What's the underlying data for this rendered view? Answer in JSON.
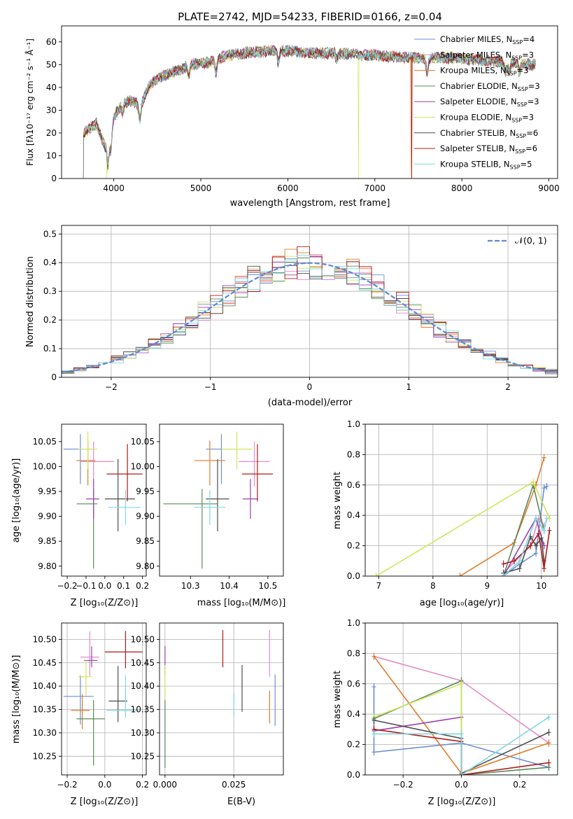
{
  "colors": [
    "#6b8fd6",
    "#e58ac8",
    "#e07b2a",
    "#5b8a5b",
    "#9b3fb0",
    "#cfe65a",
    "#4d4d4d",
    "#b01a1a",
    "#7fd8dc"
  ],
  "chart_data": [
    {
      "id": "spectrum",
      "type": "line",
      "title": "PLATE=2742, MJD=54233, FIBERID=0166, z=0.04",
      "xlabel": "wavelength [Angstrom, rest frame]",
      "ylabel": "Flux [fλ10⁻¹⁷ erg cm⁻² s⁻¹ Å⁻¹]",
      "xlim": [
        3400,
        9100
      ],
      "ylim": [
        0,
        67
      ],
      "xticks": [
        4000,
        5000,
        6000,
        7000,
        8000,
        9000
      ],
      "yticks": [
        0,
        10,
        20,
        30,
        40,
        50,
        60
      ],
      "legend_position": "top-right",
      "legend": [
        "Chabrier MILES, N_SSP=4",
        "Salpeter MILES, N_SSP=3",
        "Kroupa MILES, N_SSP=3",
        "Chabrier ELODIE, N_SSP=3",
        "Salpeter ELODIE, N_SSP=3",
        "Kroupa ELODIE, N_SSP=3",
        "Chabrier STELIB, N_SSP=6",
        "Salpeter STELIB, N_SSP=6",
        "Kroupa STELIB, N_SSP=5"
      ],
      "continuum": [
        [
          3650,
          20
        ],
        [
          3800,
          24
        ],
        [
          3900,
          14
        ],
        [
          4000,
          27
        ],
        [
          4100,
          33
        ],
        [
          4200,
          34
        ],
        [
          4300,
          32
        ],
        [
          4400,
          40
        ],
        [
          4500,
          44
        ],
        [
          4700,
          47
        ],
        [
          4900,
          50
        ],
        [
          5100,
          51
        ],
        [
          5300,
          54
        ],
        [
          5500,
          55
        ],
        [
          5800,
          56
        ],
        [
          6000,
          56
        ],
        [
          6300,
          55
        ],
        [
          6600,
          55
        ],
        [
          7000,
          54
        ],
        [
          7400,
          53
        ],
        [
          7800,
          53
        ],
        [
          8200,
          52
        ],
        [
          8500,
          51
        ],
        [
          8800,
          50
        ]
      ],
      "drops": [
        {
          "series": 5,
          "x": 3920
        },
        {
          "series": 5,
          "x": 6810
        },
        {
          "series": 2,
          "x": 7420
        },
        {
          "series": 7,
          "x": 7425
        },
        {
          "series": 6,
          "x": 3650
        }
      ]
    },
    {
      "id": "residuals",
      "type": "step",
      "xlabel": "(data-model)/error",
      "ylabel": "Normed distribution",
      "xlim": [
        -2.5,
        2.5
      ],
      "ylim": [
        0,
        0.53
      ],
      "xticks": [
        -2,
        -1,
        0,
        1,
        2
      ],
      "yticks": [
        0,
        0.1,
        0.2,
        0.3,
        0.4,
        0.5
      ],
      "legend_position": "top-right",
      "legend": [
        "𝒩(0, 1)"
      ]
    },
    {
      "id": "age-vs-z",
      "type": "errorbar",
      "xlabel": "Z [log₁₀(Z/Z⊙)]",
      "ylabel": "age [log₁₀(age/yr)]",
      "xlim": [
        -0.23,
        0.22
      ],
      "ylim": [
        9.78,
        10.085
      ],
      "xticks": [
        -0.2,
        -0.1,
        0,
        0.1,
        0.2
      ],
      "xticklabels": [
        "−0.2",
        "−0.1",
        "0.0",
        "0.1",
        "0.2"
      ],
      "yticks": [
        9.8,
        9.85,
        9.9,
        9.95,
        10,
        10.05
      ],
      "yticklabels": [
        "9.80",
        "9.85",
        "9.90",
        "9.95",
        "10.00",
        "10.05"
      ],
      "points": [
        {
          "s": 0,
          "x": -0.13,
          "y": 10.035,
          "xl": 0.09,
          "xh": 0.07,
          "yl": 0.07,
          "yh": 0.03
        },
        {
          "s": 1,
          "x": -0.06,
          "y": 10.01,
          "xl": 0.07,
          "xh": 0.11,
          "yl": 0.05,
          "yh": 0.04
        },
        {
          "s": 2,
          "x": -0.09,
          "y": 10.012,
          "xl": 0.06,
          "xh": 0.04,
          "yl": 0.05,
          "yh": 0.04
        },
        {
          "s": 3,
          "x": -0.06,
          "y": 9.925,
          "xl": 0.09,
          "xh": 0.02,
          "yl": 0.13,
          "yh": 0.03
        },
        {
          "s": 4,
          "x": -0.06,
          "y": 9.935,
          "xl": 0.04,
          "xh": 0.03,
          "yl": 0.04,
          "yh": 0.04
        },
        {
          "s": 5,
          "x": -0.09,
          "y": 10.035,
          "xl": 0.05,
          "xh": 0.05,
          "yl": 0.04,
          "yh": 0.035
        },
        {
          "s": 6,
          "x": 0.07,
          "y": 9.935,
          "xl": 0.07,
          "xh": 0.09,
          "yl": 0.065,
          "yh": 0.08
        },
        {
          "s": 7,
          "x": 0.12,
          "y": 9.985,
          "xl": 0.11,
          "xh": 0.08,
          "yl": 0.055,
          "yh": 0.06
        },
        {
          "s": 8,
          "x": 0.11,
          "y": 9.918,
          "xl": 0.09,
          "xh": 0.08,
          "yl": 0.035,
          "yh": 0.035
        }
      ]
    },
    {
      "id": "age-vs-mass",
      "type": "errorbar",
      "xlabel": "mass [log₁₀(M/M⊙)]",
      "ylabel": "",
      "xlim": [
        10.22,
        10.54
      ],
      "ylim": [
        9.78,
        10.085
      ],
      "xticks": [
        10.3,
        10.4,
        10.5
      ],
      "xticklabels": [
        "10.3",
        "10.4",
        "10.5"
      ],
      "yticks": [
        9.8,
        9.85,
        9.9,
        9.95,
        10,
        10.05
      ],
      "yticklabels": [
        "9.80",
        "9.85",
        "9.90",
        "9.95",
        "10.00",
        "10.05"
      ],
      "points": [
        {
          "s": 0,
          "x": 10.38,
          "y": 10.035,
          "xl": 0.04,
          "xh": 0.04,
          "yl": 0.07,
          "yh": 0.03
        },
        {
          "s": 1,
          "x": 10.465,
          "y": 10.01,
          "xl": 0.04,
          "xh": 0.04,
          "yl": 0.05,
          "yh": 0.04
        },
        {
          "s": 2,
          "x": 10.35,
          "y": 10.012,
          "xl": 0.04,
          "xh": 0.04,
          "yl": 0.05,
          "yh": 0.04
        },
        {
          "s": 3,
          "x": 10.33,
          "y": 9.925,
          "xl": 0.1,
          "xh": 0.04,
          "yl": 0.13,
          "yh": 0.03
        },
        {
          "s": 4,
          "x": 10.455,
          "y": 9.935,
          "xl": 0.02,
          "xh": 0.02,
          "yl": 0.04,
          "yh": 0.04
        },
        {
          "s": 5,
          "x": 10.42,
          "y": 10.035,
          "xl": 0.04,
          "xh": 0.04,
          "yl": 0.04,
          "yh": 0.035
        },
        {
          "s": 6,
          "x": 10.37,
          "y": 9.935,
          "xl": 0.03,
          "xh": 0.03,
          "yl": 0.065,
          "yh": 0.08
        },
        {
          "s": 7,
          "x": 10.473,
          "y": 9.985,
          "xl": 0.04,
          "xh": 0.04,
          "yl": 0.055,
          "yh": 0.06
        },
        {
          "s": 8,
          "x": 10.35,
          "y": 9.918,
          "xl": 0.04,
          "xh": 0.04,
          "yl": 0.035,
          "yh": 0.035
        }
      ]
    },
    {
      "id": "weight-vs-age",
      "type": "line",
      "xlabel": "age [log₁₀(age/yr)]",
      "ylabel": "mass weight",
      "xlim": [
        6.75,
        10.3
      ],
      "ylim": [
        0,
        1
      ],
      "xticks": [
        7,
        8,
        9,
        10
      ],
      "xticklabels": [
        "7",
        "8",
        "9",
        "10"
      ],
      "yticks": [
        0,
        0.2,
        0.4,
        0.6,
        0.8,
        1
      ],
      "yticklabels": [
        "0.0",
        "0.2",
        "0.4",
        "0.6",
        "0.8",
        "1.0"
      ],
      "series": [
        {
          "s": 0,
          "points": [
            [
              9.3,
              0.0
            ],
            [
              9.6,
              0.08
            ],
            [
              9.9,
              0.15
            ],
            [
              10.05,
              0.58
            ],
            [
              10.1,
              0.59
            ]
          ]
        },
        {
          "s": 1,
          "points": [
            [
              9.3,
              0.02
            ],
            [
              9.8,
              0.2
            ],
            [
              9.95,
              0.38
            ],
            [
              10.05,
              0.33
            ]
          ]
        },
        {
          "s": 2,
          "points": [
            [
              8.5,
              0.0
            ],
            [
              9.5,
              0.22
            ],
            [
              9.9,
              0.6
            ],
            [
              10.05,
              0.78
            ]
          ]
        },
        {
          "s": 3,
          "points": [
            [
              9.3,
              0.0
            ],
            [
              9.85,
              0.6
            ],
            [
              10.05,
              0.3
            ]
          ]
        },
        {
          "s": 4,
          "points": [
            [
              9.3,
              0.0
            ],
            [
              9.9,
              0.38
            ],
            [
              10.05,
              0.2
            ]
          ]
        },
        {
          "s": 5,
          "points": [
            [
              6.95,
              0.0
            ],
            [
              9.85,
              0.62
            ],
            [
              10.15,
              0.38
            ]
          ]
        },
        {
          "s": 6,
          "points": [
            [
              9.3,
              0.02
            ],
            [
              9.6,
              0.05
            ],
            [
              9.8,
              0.26
            ],
            [
              9.9,
              0.2
            ],
            [
              10.0,
              0.25
            ],
            [
              10.05,
              0.1
            ]
          ]
        },
        {
          "s": 7,
          "points": [
            [
              9.3,
              0.08
            ],
            [
              9.5,
              0.1
            ],
            [
              9.8,
              0.2
            ],
            [
              9.95,
              0.28
            ],
            [
              10.05,
              0.05
            ],
            [
              10.15,
              0.3
            ]
          ]
        },
        {
          "s": 8,
          "points": [
            [
              9.3,
              0.0
            ],
            [
              9.6,
              0.1
            ],
            [
              9.9,
              0.38
            ],
            [
              10.05,
              0.3
            ],
            [
              10.1,
              0.38
            ]
          ]
        }
      ]
    },
    {
      "id": "mass-vs-z",
      "type": "errorbar",
      "xlabel": "Z [log₁₀(Z/Z⊙)]",
      "ylabel": "mass [log₁₀(M/M⊙)]",
      "xlim": [
        -0.23,
        0.22
      ],
      "ylim": [
        10.21,
        10.535
      ],
      "xticks": [
        -0.2,
        0,
        0.2
      ],
      "xticklabels": [
        "−0.2",
        "0.0",
        "0.2"
      ],
      "yticks": [
        10.25,
        10.3,
        10.35,
        10.4,
        10.45,
        10.5
      ],
      "yticklabels": [
        "10.25",
        "10.30",
        "10.35",
        "10.40",
        "10.45",
        "10.50"
      ],
      "points": [
        {
          "s": 0,
          "x": -0.13,
          "y": 10.378,
          "xl": 0.09,
          "xh": 0.07,
          "yl": 0.06,
          "yh": 0.045
        },
        {
          "s": 1,
          "x": -0.08,
          "y": 10.462,
          "xl": 0.05,
          "xh": 0.05,
          "yl": 0.04,
          "yh": 0.055
        },
        {
          "s": 2,
          "x": -0.12,
          "y": 10.348,
          "xl": 0.06,
          "xh": 0.04,
          "yl": 0.04,
          "yh": 0.035
        },
        {
          "s": 3,
          "x": -0.06,
          "y": 10.33,
          "xl": 0.09,
          "xh": 0.06,
          "yl": 0.1,
          "yh": 0.04
        },
        {
          "s": 4,
          "x": -0.07,
          "y": 10.455,
          "xl": 0.04,
          "xh": 0.03,
          "yl": 0.015,
          "yh": 0.03
        },
        {
          "s": 5,
          "x": -0.1,
          "y": 10.42,
          "xl": 0.04,
          "xh": 0.03,
          "yl": 0.04,
          "yh": 0.035
        },
        {
          "s": 6,
          "x": 0.07,
          "y": 10.368,
          "xl": 0.05,
          "xh": 0.05,
          "yl": 0.045,
          "yh": 0.075
        },
        {
          "s": 7,
          "x": 0.11,
          "y": 10.473,
          "xl": 0.11,
          "xh": 0.09,
          "yl": 0.035,
          "yh": 0.045
        },
        {
          "s": 8,
          "x": 0.11,
          "y": 10.348,
          "xl": 0.1,
          "xh": 0.07,
          "yl": 0.015,
          "yh": 0.075
        }
      ]
    },
    {
      "id": "mass-vs-ebv",
      "type": "errorbar",
      "xlabel": "E(B-V)",
      "ylabel": "",
      "xlim": [
        -0.002,
        0.043
      ],
      "ylim": [
        10.21,
        10.535
      ],
      "xticks": [
        0,
        0.025
      ],
      "xticklabels": [
        "0.000",
        "0.025"
      ],
      "yticks": [
        10.25,
        10.3,
        10.35,
        10.4,
        10.45,
        10.5
      ],
      "yticklabels": [
        "10.25",
        "10.30",
        "10.35",
        "10.40",
        "10.45",
        "10.50"
      ],
      "points": [
        {
          "s": 0,
          "x": 0.04,
          "y": 10.37,
          "xl": 0,
          "xh": 0,
          "yl": 0.055,
          "yh": 0.055
        },
        {
          "s": 1,
          "x": 0.038,
          "y": 10.47,
          "xl": 0,
          "xh": 0,
          "yl": 0.05,
          "yh": 0.05
        },
        {
          "s": 2,
          "x": 0.038,
          "y": 10.355,
          "xl": 0,
          "xh": 0,
          "yl": 0.035,
          "yh": 0.035
        },
        {
          "s": 3,
          "x": 0.0,
          "y": 10.3,
          "xl": 0,
          "xh": 0,
          "yl": 0.075,
          "yh": 0.07
        },
        {
          "s": 4,
          "x": 0.0,
          "y": 10.455,
          "xl": 0,
          "xh": 0,
          "yl": 0.03,
          "yh": 0.03
        },
        {
          "s": 5,
          "x": 0.0,
          "y": 10.41,
          "xl": 0,
          "xh": 0,
          "yl": 0.035,
          "yh": 0.035
        },
        {
          "s": 6,
          "x": 0.028,
          "y": 10.395,
          "xl": 0,
          "xh": 0,
          "yl": 0.05,
          "yh": 0.05
        },
        {
          "s": 7,
          "x": 0.021,
          "y": 10.48,
          "xl": 0,
          "xh": 0,
          "yl": 0.04,
          "yh": 0.04
        },
        {
          "s": 8,
          "x": 0.025,
          "y": 10.36,
          "xl": 0,
          "xh": 0,
          "yl": 0.025,
          "yh": 0.025
        }
      ]
    },
    {
      "id": "weight-vs-z",
      "type": "line",
      "xlabel": "Z [log₁₀(Z/Z⊙)]",
      "ylabel": "mass weight",
      "xlim": [
        -0.33,
        0.33
      ],
      "ylim": [
        0,
        1
      ],
      "xticks": [
        -0.2,
        0,
        0.2
      ],
      "xticklabels": [
        "−0.2",
        "0.0",
        "0.2"
      ],
      "yticks": [
        0,
        0.2,
        0.4,
        0.6,
        0.8,
        1
      ],
      "yticklabels": [
        "0.0",
        "0.2",
        "0.4",
        "0.6",
        "0.8",
        "1.0"
      ],
      "series": [
        {
          "s": 0,
          "points": [
            [
              -0.3,
              0.58
            ],
            [
              -0.3,
              0.15
            ],
            [
              0.0,
              0.21
            ],
            [
              0.3,
              0.05
            ]
          ]
        },
        {
          "s": 1,
          "points": [
            [
              -0.3,
              0.78
            ],
            [
              0.0,
              0.62
            ],
            [
              0.3,
              0.21
            ]
          ]
        },
        {
          "s": 2,
          "points": [
            [
              -0.3,
              0.78
            ],
            [
              0.0,
              0.01
            ],
            [
              0.3,
              0.21
            ]
          ]
        },
        {
          "s": 3,
          "points": [
            [
              -0.3,
              0.37
            ],
            [
              0.0,
              0.62
            ],
            [
              0.0,
              0.0
            ],
            [
              0.3,
              0.05
            ]
          ]
        },
        {
          "s": 4,
          "points": [
            [
              -0.3,
              0.29
            ],
            [
              0.0,
              0.38
            ]
          ]
        },
        {
          "s": 5,
          "points": [
            [
              -0.3,
              0.38
            ],
            [
              0.0,
              0.6
            ],
            [
              0.0,
              0.0
            ]
          ]
        },
        {
          "s": 6,
          "points": [
            [
              -0.3,
              0.36
            ],
            [
              0.0,
              0.24
            ],
            [
              0.0,
              0.01
            ],
            [
              0.3,
              0.28
            ]
          ]
        },
        {
          "s": 7,
          "points": [
            [
              -0.3,
              0.3
            ],
            [
              0.0,
              0.22
            ],
            [
              0.0,
              0.0
            ],
            [
              0.3,
              0.08
            ]
          ]
        },
        {
          "s": 8,
          "points": [
            [
              -0.3,
              0.27
            ],
            [
              0.0,
              0.27
            ],
            [
              0.0,
              0.0
            ],
            [
              0.3,
              0.38
            ]
          ]
        }
      ]
    }
  ]
}
